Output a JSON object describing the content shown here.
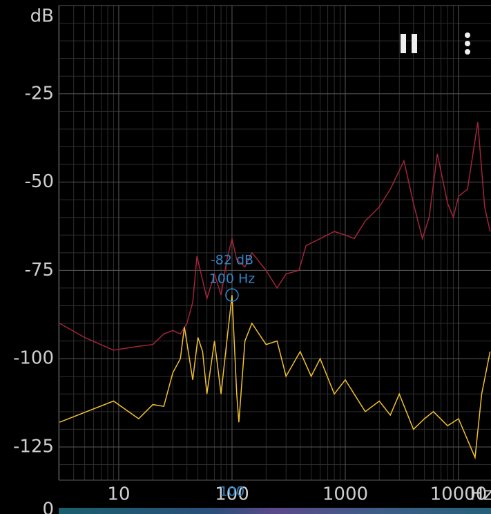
{
  "chart_data": {
    "type": "line",
    "x_scale": "log",
    "ylabel": "dB",
    "xlabel": "Hz",
    "xlim": [
      2.95,
      19350
    ],
    "ylim": [
      -134.4,
      0
    ],
    "xticks": [
      10,
      100,
      1000,
      10000
    ],
    "yticks": [
      -25,
      -50,
      -75,
      -100,
      -125
    ],
    "x_minor_grid": [
      3,
      4,
      5,
      6,
      7,
      8,
      9,
      20,
      30,
      40,
      50,
      60,
      70,
      80,
      90,
      200,
      300,
      400,
      500,
      600,
      700,
      800,
      900,
      2000,
      3000,
      4000,
      5000,
      6000,
      7000,
      8000,
      9000
    ],
    "y_minor_grid": [
      -5,
      -10,
      -15,
      -20,
      -30,
      -35,
      -40,
      -45,
      -55,
      -60,
      -65,
      -70,
      -80,
      -85,
      -90,
      -95,
      -105,
      -110,
      -115,
      -120,
      -130
    ],
    "grid": true,
    "series": [
      {
        "color": "#a3243a",
        "x": [
          3,
          5,
          9,
          15,
          20,
          25,
          30,
          35,
          40,
          45,
          49,
          60,
          70,
          80,
          90,
          100,
          110,
          130,
          150,
          200,
          250,
          300,
          390,
          450,
          600,
          800,
          1000,
          1200,
          1500,
          2000,
          2500,
          3300,
          4000,
          4800,
          5500,
          6500,
          8000,
          9000,
          10000,
          12000,
          14800,
          17000,
          19000
        ],
        "values": [
          -90,
          -94,
          -97.6,
          -96.5,
          -96,
          -93,
          -92,
          -93,
          -90,
          -84,
          -71,
          -83,
          -76,
          -82,
          -72,
          -66,
          -72,
          -74,
          -70,
          -75,
          -80,
          -76,
          -75,
          -68,
          -66,
          -64,
          -65,
          -66,
          -61,
          -57,
          -52,
          -44,
          -56,
          -66,
          -60,
          -42,
          -56,
          -60,
          -54,
          -52,
          -33,
          -57,
          -64
        ]
      },
      {
        "color": "#f2c12e",
        "x": [
          3,
          9,
          15,
          20,
          25,
          30,
          35,
          38,
          45,
          50,
          55,
          60,
          70,
          80,
          90,
          100,
          110,
          115,
          130,
          150,
          200,
          250,
          300,
          400,
          500,
          600,
          800,
          1000,
          1500,
          2000,
          2500,
          3000,
          4000,
          5000,
          6000,
          8000,
          10000,
          14000,
          16000,
          19000
        ],
        "values": [
          -118,
          -112,
          -117,
          -113,
          -113.5,
          -104,
          -100,
          -91,
          -106,
          -94,
          -98,
          -110,
          -95,
          -110,
          -95,
          -82,
          -110,
          -118,
          -95,
          -90,
          -96,
          -95,
          -105,
          -98,
          -105,
          -100,
          -110,
          -106,
          -115,
          -112,
          -116,
          -110,
          -120,
          -117,
          -115,
          -119,
          -117,
          -128,
          -110,
          -98
        ]
      }
    ],
    "cursor": {
      "x": 100,
      "y": -82,
      "db_label": "-82 dB",
      "hz_label": "100 Hz",
      "axis_label": "100",
      "color": "#2f86c8"
    },
    "spectrogram_label": "0"
  }
}
